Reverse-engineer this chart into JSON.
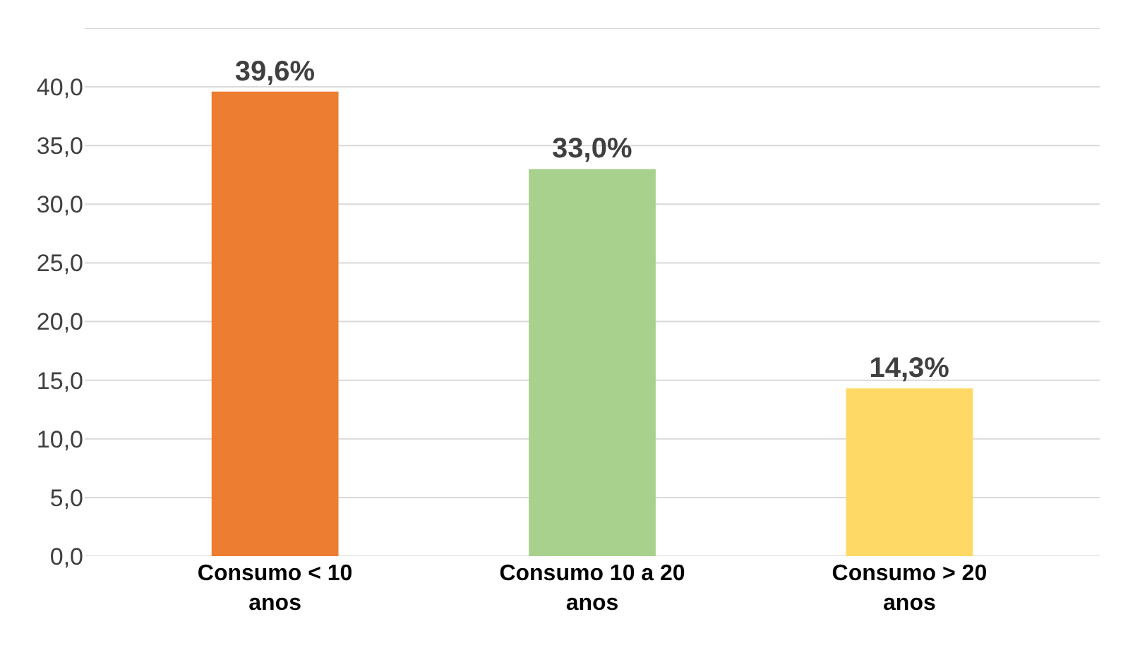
{
  "chart_data": {
    "type": "bar",
    "categories": [
      "Consumo < 10\nanos",
      "Consumo 10 a 20\nanos",
      "Consumo > 20\nanos"
    ],
    "values": [
      39.6,
      33.0,
      14.3
    ],
    "colors": [
      "#ed7d31",
      "#a9d18e",
      "#ffd966"
    ],
    "value_labels": [
      "39,6%",
      "33,0%",
      "14,3%"
    ],
    "ylim": [
      0,
      45
    ],
    "yticks": [
      {
        "value": 0,
        "label": "0,0"
      },
      {
        "value": 5,
        "label": "5,0"
      },
      {
        "value": 10,
        "label": "10,0"
      },
      {
        "value": 15,
        "label": "15,0"
      },
      {
        "value": 20,
        "label": "20,0"
      },
      {
        "value": 25,
        "label": "25,0"
      },
      {
        "value": 30,
        "label": "30,0"
      },
      {
        "value": 35,
        "label": "35,0"
      },
      {
        "value": 40,
        "label": "40,0"
      },
      {
        "value": 45,
        "label": null
      }
    ],
    "grid": "y",
    "legend": false
  }
}
